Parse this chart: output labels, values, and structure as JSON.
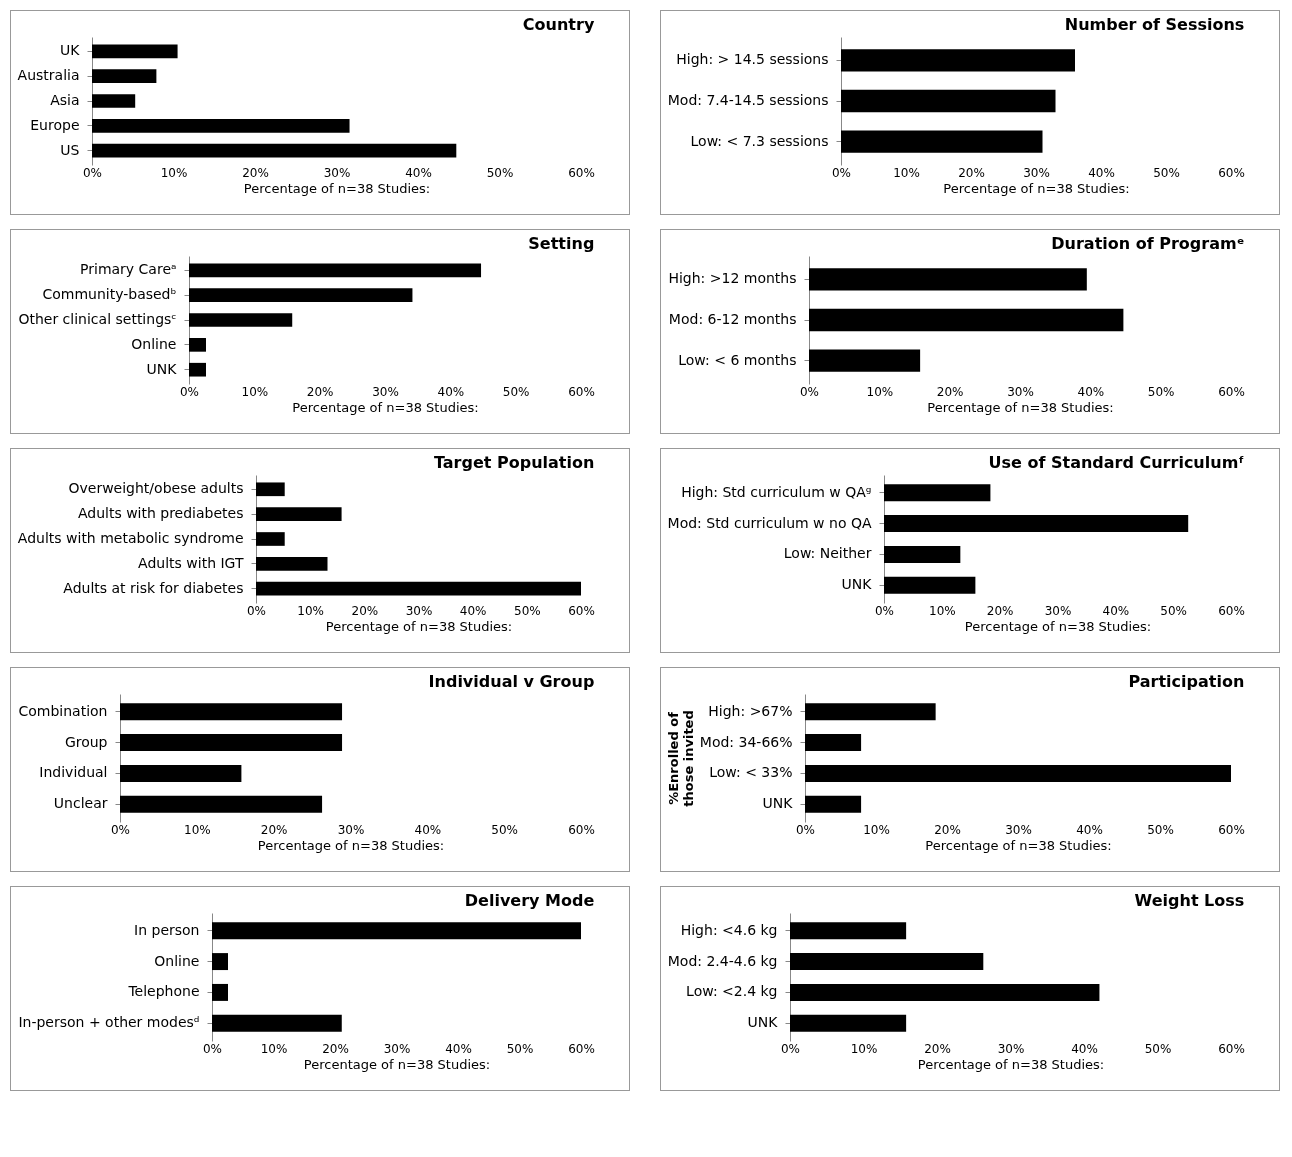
{
  "chart_data": [
    {
      "type": "bar",
      "orientation": "horizontal",
      "title": "Country",
      "xlabel": "Percentage of n=38 Studies:",
      "categories": [
        "UK",
        "Australia",
        "Asia",
        "Europe",
        "US"
      ],
      "values": [
        10.5,
        7.9,
        5.3,
        31.6,
        44.7
      ],
      "color": "#000000",
      "xlim": [
        0,
        60
      ],
      "xticks": [
        {
          "value": 0,
          "label": "0%"
        },
        {
          "value": 10,
          "label": "10%"
        },
        {
          "value": 20,
          "label": "20%"
        },
        {
          "value": 30,
          "label": "30%"
        },
        {
          "value": 40,
          "label": "40%"
        },
        {
          "value": 50,
          "label": "50%"
        },
        {
          "value": 60,
          "label": "60%"
        }
      ]
    },
    {
      "type": "bar",
      "orientation": "horizontal",
      "title": "Number of Sessions",
      "xlabel": "Percentage of n=38 Studies:",
      "categories": [
        "High: > 14.5 sessions",
        "Mod: 7.4-14.5 sessions",
        "Low: < 7.3 sessions"
      ],
      "values": [
        36,
        33,
        31
      ],
      "color": "#000000",
      "xlim": [
        0,
        60
      ],
      "xticks": [
        {
          "value": 0,
          "label": "0%"
        },
        {
          "value": 10,
          "label": "10%"
        },
        {
          "value": 20,
          "label": "20%"
        },
        {
          "value": 30,
          "label": "30%"
        },
        {
          "value": 40,
          "label": "40%"
        },
        {
          "value": 50,
          "label": "50%"
        },
        {
          "value": 60,
          "label": "60%"
        }
      ]
    },
    {
      "type": "bar",
      "orientation": "horizontal",
      "title": "Setting",
      "xlabel": "Percentage of n=38 Studies:",
      "categories": [
        "Primary Careᵃ",
        "Community-basedᵇ",
        "Other clinical settingsᶜ",
        "Online",
        "UNK"
      ],
      "values": [
        44.7,
        34.2,
        15.8,
        2.6,
        2.6
      ],
      "color": "#000000",
      "xlim": [
        0,
        60
      ],
      "xticks": [
        {
          "value": 0,
          "label": "0%"
        },
        {
          "value": 10,
          "label": "10%"
        },
        {
          "value": 20,
          "label": "20%"
        },
        {
          "value": 30,
          "label": "30%"
        },
        {
          "value": 40,
          "label": "40%"
        },
        {
          "value": 50,
          "label": "50%"
        },
        {
          "value": 60,
          "label": "60%"
        }
      ]
    },
    {
      "type": "bar",
      "orientation": "horizontal",
      "title": "Duration of Programᵉ",
      "xlabel": "Percentage of n=38 Studies:",
      "categories": [
        "High: >12 months",
        "Mod: 6-12 months",
        "Low: < 6 months"
      ],
      "values": [
        39.5,
        44.7,
        15.8
      ],
      "color": "#000000",
      "xlim": [
        0,
        60
      ],
      "xticks": [
        {
          "value": 0,
          "label": "0%"
        },
        {
          "value": 10,
          "label": "10%"
        },
        {
          "value": 20,
          "label": "20%"
        },
        {
          "value": 30,
          "label": "30%"
        },
        {
          "value": 40,
          "label": "40%"
        },
        {
          "value": 50,
          "label": "50%"
        },
        {
          "value": 60,
          "label": "60%"
        }
      ]
    },
    {
      "type": "bar",
      "orientation": "horizontal",
      "title": "Target Population",
      "xlabel": "Percentage of n=38 Studies:",
      "categories": [
        "Overweight/obese adults",
        "Adults with prediabetes",
        "Adults with metabolic syndrome",
        "Adults with IGT",
        "Adults at risk for diabetes"
      ],
      "values": [
        5.3,
        15.8,
        5.3,
        13.2,
        60
      ],
      "color": "#000000",
      "xlim": [
        0,
        60
      ],
      "xticks": [
        {
          "value": 0,
          "label": "0%"
        },
        {
          "value": 10,
          "label": "10%"
        },
        {
          "value": 20,
          "label": "20%"
        },
        {
          "value": 30,
          "label": "30%"
        },
        {
          "value": 40,
          "label": "40%"
        },
        {
          "value": 50,
          "label": "50%"
        },
        {
          "value": 60,
          "label": "60%"
        }
      ]
    },
    {
      "type": "bar",
      "orientation": "horizontal",
      "title": "Use of Standard Curriculumᶠ",
      "xlabel": "Percentage of n=38 Studies:",
      "categories": [
        "High: Std curriculum w QAᵍ",
        "Mod: Std curriculum w no QA",
        "Low: Neither",
        "UNK"
      ],
      "values": [
        18.4,
        52.6,
        13.2,
        15.8
      ],
      "color": "#000000",
      "xlim": [
        0,
        60
      ],
      "xticks": [
        {
          "value": 0,
          "label": "0%"
        },
        {
          "value": 10,
          "label": "10%"
        },
        {
          "value": 20,
          "label": "20%"
        },
        {
          "value": 30,
          "label": "30%"
        },
        {
          "value": 40,
          "label": "40%"
        },
        {
          "value": 50,
          "label": "50%"
        },
        {
          "value": 60,
          "label": "60%"
        }
      ]
    },
    {
      "type": "bar",
      "orientation": "horizontal",
      "title": "Individual v Group",
      "xlabel": "Percentage of n=38 Studies:",
      "categories": [
        "Combination",
        "Group",
        "Individual",
        "Unclear"
      ],
      "values": [
        28.9,
        28.9,
        15.8,
        26.3
      ],
      "color": "#000000",
      "xlim": [
        0,
        60
      ],
      "xticks": [
        {
          "value": 0,
          "label": "0%"
        },
        {
          "value": 10,
          "label": "10%"
        },
        {
          "value": 20,
          "label": "20%"
        },
        {
          "value": 30,
          "label": "30%"
        },
        {
          "value": 40,
          "label": "40%"
        },
        {
          "value": 50,
          "label": "50%"
        },
        {
          "value": 60,
          "label": "60%"
        }
      ]
    },
    {
      "type": "bar",
      "orientation": "horizontal",
      "title": "Participation",
      "xlabel": "Percentage of n=38 Studies:",
      "ylabel": "%Enrolled of those invited",
      "categories": [
        "High: >67%",
        "Mod: 34-66%",
        "Low: < 33%",
        "UNK"
      ],
      "values": [
        18.4,
        7.9,
        60,
        7.9
      ],
      "color": "#000000",
      "xlim": [
        0,
        60
      ],
      "xticks": [
        {
          "value": 0,
          "label": "0%"
        },
        {
          "value": 10,
          "label": "10%"
        },
        {
          "value": 20,
          "label": "20%"
        },
        {
          "value": 30,
          "label": "30%"
        },
        {
          "value": 40,
          "label": "40%"
        },
        {
          "value": 50,
          "label": "50%"
        },
        {
          "value": 60,
          "label": "60%"
        }
      ]
    },
    {
      "type": "bar",
      "orientation": "horizontal",
      "title": "Delivery Mode",
      "xlabel": "Percentage of n=38 Studies:",
      "categories": [
        "In person",
        "Online",
        "Telephone",
        "In-person + other modesᵈ"
      ],
      "values": [
        60,
        2.6,
        2.6,
        21.1
      ],
      "color": "#000000",
      "xlim": [
        0,
        60
      ],
      "xticks": [
        {
          "value": 0,
          "label": "0%"
        },
        {
          "value": 10,
          "label": "10%"
        },
        {
          "value": 20,
          "label": "20%"
        },
        {
          "value": 30,
          "label": "30%"
        },
        {
          "value": 40,
          "label": "40%"
        },
        {
          "value": 50,
          "label": "50%"
        },
        {
          "value": 60,
          "label": "60%"
        }
      ]
    },
    {
      "type": "bar",
      "orientation": "horizontal",
      "title": "Weight Loss",
      "xlabel": "Percentage of n=38 Studies:",
      "categories": [
        "High: <4.6 kg",
        "Mod: 2.4-4.6 kg",
        "Low: <2.4 kg",
        "UNK"
      ],
      "values": [
        15.8,
        26.3,
        42.1,
        15.8
      ],
      "color": "#000000",
      "xlim": [
        0,
        60
      ],
      "xticks": [
        {
          "value": 0,
          "label": "0%"
        },
        {
          "value": 10,
          "label": "10%"
        },
        {
          "value": 20,
          "label": "20%"
        },
        {
          "value": 30,
          "label": "30%"
        },
        {
          "value": 40,
          "label": "40%"
        },
        {
          "value": 50,
          "label": "50%"
        },
        {
          "value": 60,
          "label": "60%"
        }
      ]
    }
  ]
}
